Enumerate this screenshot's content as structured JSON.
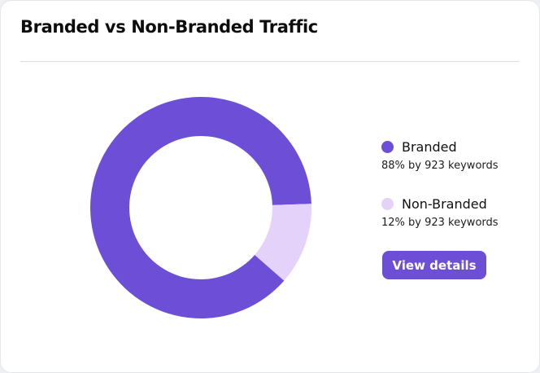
{
  "card": {
    "title": "Branded vs Non-Branded Traffic",
    "view_details_label": "View details"
  },
  "chart_data": {
    "type": "pie",
    "donut": true,
    "categories": [
      "Branded",
      "Non-Branded"
    ],
    "values": [
      88,
      12
    ],
    "colors": [
      "#6c4fd6",
      "#e5d2fb"
    ]
  },
  "legend": [
    {
      "label": "Branded",
      "detail": "88% by 923 keywords",
      "color": "#6c4fd6"
    },
    {
      "label": "Non-Branded",
      "detail": "12% by 923 keywords",
      "color": "#e5d2fb"
    }
  ]
}
